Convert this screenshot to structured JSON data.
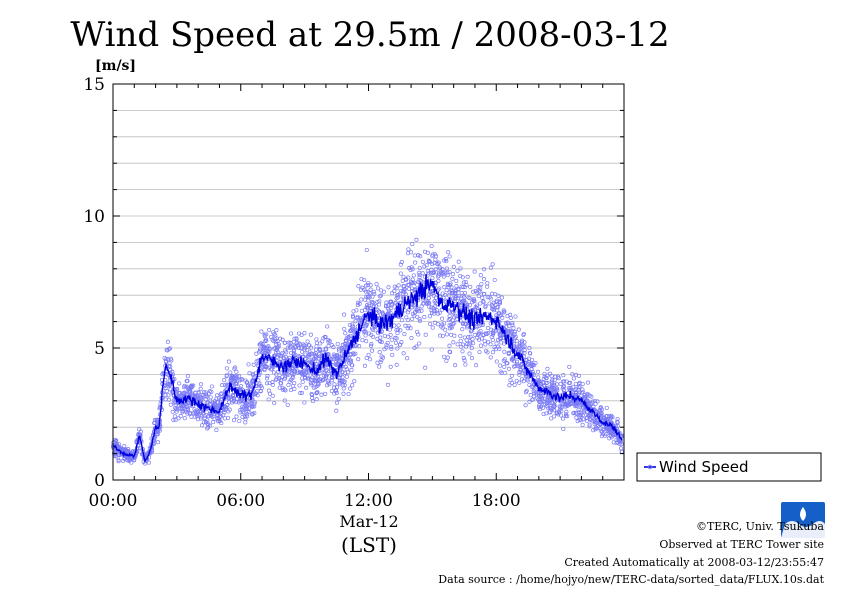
{
  "chart_data": {
    "type": "line",
    "title": "Wind Speed at 29.5m / 2008-03-12",
    "ylabel": "[m/s]",
    "xlabel": "(LST)",
    "x_date_label": "Mar-12",
    "xlim": [
      "00:00",
      "24:00"
    ],
    "ylim": [
      0,
      15
    ],
    "y_ticks": [
      0,
      5,
      10,
      15
    ],
    "x_ticks": [
      "00:00",
      "06:00",
      "12:00",
      "18:00"
    ],
    "grid": true,
    "legend": {
      "placement": "right",
      "label": "Wind Speed"
    },
    "series": [
      {
        "name": "Wind Speed",
        "color": "#0000dd",
        "scatter_color": "#7a7af5",
        "x": [
          "00:00",
          "00:30",
          "01:00",
          "01:15",
          "01:30",
          "01:45",
          "02:00",
          "02:10",
          "02:20",
          "02:30",
          "02:45",
          "03:00",
          "03:30",
          "04:00",
          "04:30",
          "05:00",
          "05:30",
          "06:00",
          "06:30",
          "07:00",
          "07:30",
          "08:00",
          "08:30",
          "09:00",
          "09:30",
          "10:00",
          "10:30",
          "11:00",
          "11:30",
          "12:00",
          "12:30",
          "13:00",
          "13:30",
          "14:00",
          "14:30",
          "15:00",
          "15:30",
          "16:00",
          "16:30",
          "17:00",
          "17:30",
          "18:00",
          "18:30",
          "19:00",
          "19:30",
          "20:00",
          "20:30",
          "21:00",
          "21:30",
          "22:00",
          "22:30",
          "23:00",
          "23:30",
          "23:55"
        ],
        "values": [
          1.3,
          1.0,
          0.9,
          1.7,
          0.7,
          1.1,
          2.0,
          2.0,
          3.5,
          4.4,
          3.8,
          3.0,
          3.1,
          2.9,
          2.7,
          2.6,
          3.6,
          3.2,
          3.2,
          4.7,
          4.5,
          4.3,
          4.5,
          4.4,
          4.1,
          4.6,
          4.0,
          4.8,
          5.6,
          6.3,
          5.9,
          6.0,
          6.5,
          6.8,
          7.2,
          7.4,
          6.6,
          6.7,
          6.3,
          6.0,
          6.2,
          6.1,
          5.4,
          4.8,
          4.1,
          3.5,
          3.3,
          3.1,
          3.2,
          3.0,
          2.6,
          2.2,
          2.0,
          1.5
        ]
      }
    ]
  },
  "credits": {
    "copyright": "©TERC, Univ. Tsukuba",
    "observed": "Observed at TERC Tower site",
    "created": "Created Automatically at 2008-03-12/23:55:47",
    "source": "Data source : /home/hojyo/new/TERC-data/sorted_data/FLUX.10s.dat"
  }
}
